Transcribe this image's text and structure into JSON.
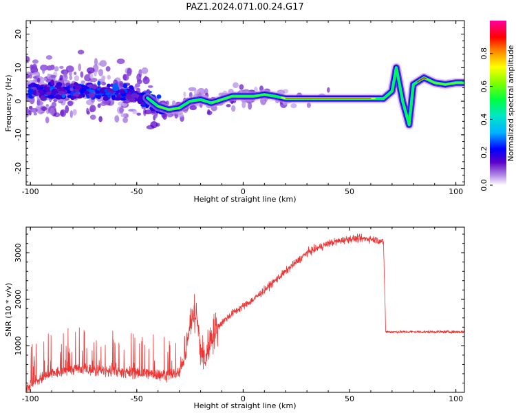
{
  "title": "PAZ1.2024.071.00.24.G17",
  "chart_data": [
    {
      "type": "heatmap",
      "xlabel": "Height of straight line (km)",
      "ylabel": "Frequency (Hz)",
      "xlim": [
        -102,
        104
      ],
      "ylim": [
        -25,
        24
      ],
      "xticks": [
        -100,
        -50,
        0,
        50,
        100
      ],
      "yticks": [
        -20,
        -10,
        0,
        10,
        20
      ],
      "colorbar": {
        "label": "Normalized spectral amplitude",
        "ticks": [
          0.0,
          0.2,
          0.4,
          0.6,
          0.8
        ],
        "tick_labels": [
          "0.0",
          "0.2",
          "0.4",
          "0.6",
          "0.8"
        ],
        "range": [
          0,
          1
        ],
        "colormap": "gist_ncar-like",
        "colors": [
          "#ffffff",
          "#5a00c8",
          "#0000ff",
          "#00b4ff",
          "#00ff80",
          "#80ff00",
          "#ffff00",
          "#ff8000",
          "#ff0000",
          "#ff00a0"
        ]
      },
      "ridge": {
        "x": [
          -100,
          -80,
          -60,
          -50,
          -45,
          -40,
          -35,
          -30,
          -25,
          -20,
          -15,
          -10,
          -5,
          0,
          5,
          10,
          15,
          20,
          30,
          40,
          50,
          60,
          66,
          70,
          72,
          75,
          78,
          80,
          85,
          90,
          95,
          100,
          104
        ],
        "y": [
          3,
          3,
          2.5,
          2,
          1,
          -1.5,
          -2.5,
          -2,
          0,
          0.5,
          -0.5,
          0.5,
          1.5,
          1.5,
          1.5,
          2,
          1.5,
          0.8,
          0.8,
          0.8,
          0.8,
          0.8,
          0.8,
          3,
          10,
          0,
          -7,
          5,
          7,
          5.5,
          5,
          5.5,
          5.5
        ]
      }
    },
    {
      "type": "line",
      "xlabel": "Height of straight line (km)",
      "ylabel": "SNR (10 * v/v)",
      "xlim": [
        -102,
        104
      ],
      "ylim": [
        0,
        3550
      ],
      "xticks": [
        -100,
        -50,
        0,
        50,
        100
      ],
      "yticks": [
        1000,
        2000,
        3000
      ],
      "color": "#ee3333",
      "series": [
        {
          "x": [
            -102,
            -95,
            -90,
            -85,
            -80,
            -75,
            -70,
            -65,
            -60,
            -55,
            -50,
            -45,
            -40,
            -35,
            -30,
            -27,
            -25,
            -22,
            -20,
            -18,
            -15,
            -12,
            -10,
            -5,
            0,
            5,
            10,
            15,
            20,
            25,
            30,
            35,
            40,
            45,
            50,
            55,
            60,
            65,
            66,
            67,
            70,
            75,
            80,
            85,
            90,
            95,
            100,
            104
          ],
          "y": [
            100,
            300,
            400,
            450,
            500,
            500,
            480,
            460,
            450,
            430,
            420,
            400,
            380,
            380,
            420,
            800,
            1500,
            1700,
            900,
            700,
            1200,
            1400,
            1500,
            1700,
            1850,
            2000,
            2200,
            2400,
            2600,
            2800,
            3000,
            3100,
            3200,
            3250,
            3300,
            3300,
            3300,
            3250,
            3200,
            1300,
            1300,
            1300,
            1300,
            1300,
            1300,
            1300,
            1300,
            1300
          ]
        }
      ]
    }
  ]
}
